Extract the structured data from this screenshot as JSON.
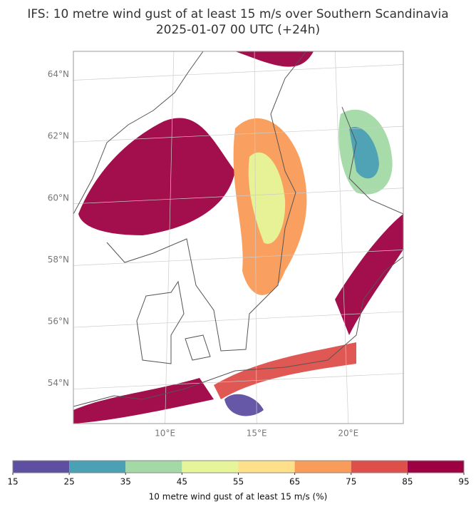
{
  "chart_data": {
    "type": "map",
    "title": "IFS: 10 metre wind gust of at least 15 m/s over Southern Scandinavia",
    "subtitle": "2025-01-07 00 UTC (+24h)",
    "xlim": [
      5.0,
      23.0
    ],
    "ylim": [
      52.7,
      64.75
    ],
    "xticks": [
      {
        "value": 10,
        "label": "10°E"
      },
      {
        "value": 15,
        "label": "15°E"
      },
      {
        "value": 20,
        "label": "20°E"
      }
    ],
    "yticks": [
      {
        "value": 54,
        "label": "54°N"
      },
      {
        "value": 56,
        "label": "56°N"
      },
      {
        "value": 58,
        "label": "58°N"
      },
      {
        "value": 60,
        "label": "60°N"
      },
      {
        "value": 62,
        "label": "62°N"
      },
      {
        "value": 64,
        "label": "64°N"
      }
    ],
    "grid": true,
    "colorbar": {
      "label": "10 metre wind gust of at least 15 m/s (%)",
      "levels": [
        15,
        25,
        35,
        45,
        55,
        65,
        75,
        85,
        95
      ],
      "colors": [
        "#5e4fa2",
        "#4aa0b4",
        "#a2d9a4",
        "#e6f598",
        "#fee08b",
        "#f99b59",
        "#de4f4a",
        "#9e0142"
      ]
    }
  }
}
